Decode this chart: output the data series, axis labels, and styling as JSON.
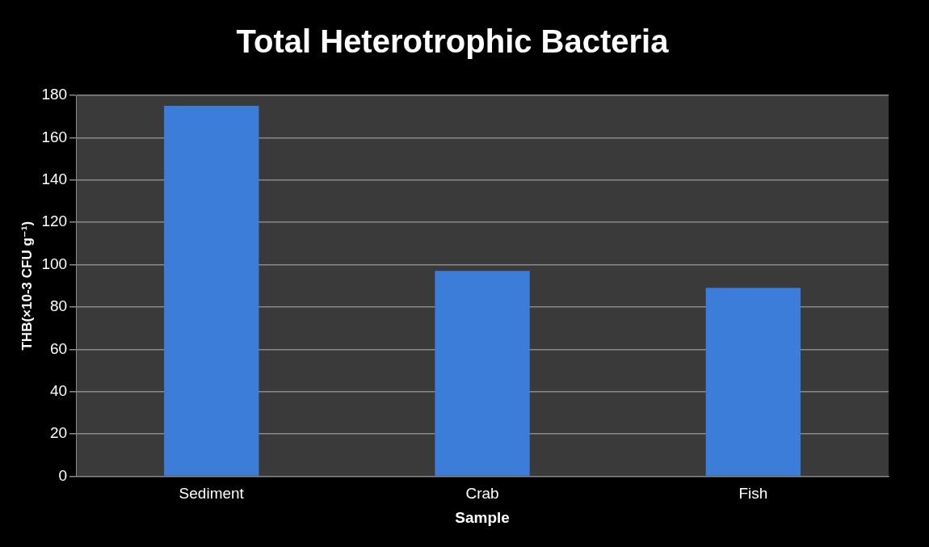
{
  "chart_data": {
    "type": "bar",
    "title": "Total Heterotrophic Bacteria",
    "xlabel": "Sample",
    "ylabel": "THB(×10-3 CFU g⁻¹)",
    "categories": [
      "Sediment",
      "Crab",
      "Fish"
    ],
    "values": [
      175,
      97,
      89
    ],
    "color": "#3b7dd8",
    "ylim": [
      0,
      180
    ],
    "yticks": [
      0,
      20,
      40,
      60,
      80,
      100,
      120,
      140,
      160,
      180
    ],
    "grid": "y"
  }
}
